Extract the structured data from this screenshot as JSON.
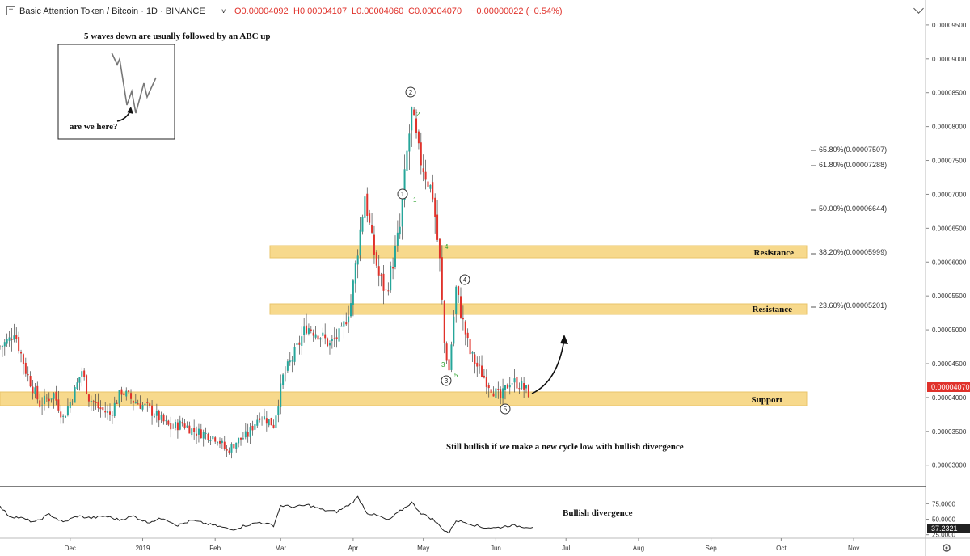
{
  "header": {
    "symbol": "Basic Attention Token / Bitcoin · 1D · BINANCE",
    "open": "O0.00004092",
    "high": "H0.00004107",
    "low": "L0.00004060",
    "close": "C0.00004070",
    "change": "−0.00000022 (−0.54%)"
  },
  "colors": {
    "up": "#26a69a",
    "down": "#e0322b",
    "zone": "#f7d98c",
    "price_tag": "#e0322b"
  },
  "chart_data": [
    {
      "type": "candlestick",
      "title": "Basic Attention Token / Bitcoin · 1D · BINANCE",
      "y_ticks": [
        "0.00009500",
        "0.00009000",
        "0.00008500",
        "0.00008000",
        "0.00007500",
        "0.00007000",
        "0.00006500",
        "0.00006000",
        "0.00005500",
        "0.00005000",
        "0.00004500",
        "0.00004000",
        "0.00003500",
        "0.00003000"
      ],
      "x_ticks": [
        "Dec",
        "2019",
        "Feb",
        "Mar",
        "Apr",
        "May",
        "Jun",
        "Jul",
        "Aug",
        "Sep",
        "Oct",
        "Nov"
      ],
      "ylim": [
        2.77e-05,
        9.63e-05
      ],
      "last_price": "0.00004070",
      "fib_levels": [
        {
          "label": "65.80%(0.00007507)",
          "value": 7.507e-05
        },
        {
          "label": "61.80%(0.00007288)",
          "value": 7.288e-05
        },
        {
          "label": "50.00%(0.00006644)",
          "value": 6.644e-05
        },
        {
          "label": "38.20%(0.00005999)",
          "value": 5.999e-05
        },
        {
          "label": "23.60%(0.00005201)",
          "value": 5.201e-05
        }
      ],
      "zones": [
        {
          "label": "Resistance",
          "low": 5.96e-05,
          "high": 6.13e-05
        },
        {
          "label": "Resistance",
          "low": 5.16e-05,
          "high": 5.31e-05
        },
        {
          "label": "Support",
          "low": 3.84e-05,
          "high": 4.04e-05
        }
      ],
      "wave_labels": [
        "1",
        "2",
        "3",
        "4",
        "5"
      ],
      "wave_counts": [
        "1",
        "2",
        "3",
        "4",
        "5"
      ],
      "annotations": [
        "5 waves down are usually followed by an ABC up",
        "are we here?",
        "Still bullish if we make a new cycle low with bullish divergence"
      ],
      "price_points": [
        [
          "2018-11-01",
          4.75e-05
        ],
        [
          "2018-11-05",
          4.85e-05
        ],
        [
          "2018-11-07",
          5e-05
        ],
        [
          "2018-11-12",
          4.4e-05
        ],
        [
          "2018-11-18",
          3.9e-05
        ],
        [
          "2018-11-24",
          4.05e-05
        ],
        [
          "2018-11-28",
          3.7e-05
        ],
        [
          "2018-12-03",
          4.1e-05
        ],
        [
          "2018-12-06",
          4.4e-05
        ],
        [
          "2018-12-09",
          4e-05
        ],
        [
          "2018-12-13",
          3.85e-05
        ],
        [
          "2018-12-18",
          3.75e-05
        ],
        [
          "2018-12-23",
          4.1e-05
        ],
        [
          "2018-12-28",
          3.95e-05
        ],
        [
          "2019-01-03",
          3.85e-05
        ],
        [
          "2019-01-08",
          3.7e-05
        ],
        [
          "2019-01-13",
          3.55e-05
        ],
        [
          "2019-01-18",
          3.62e-05
        ],
        [
          "2019-01-23",
          3.5e-05
        ],
        [
          "2019-01-28",
          3.46e-05
        ],
        [
          "2019-02-02",
          3.4e-05
        ],
        [
          "2019-02-06",
          3.2e-05
        ],
        [
          "2019-02-10",
          3.35e-05
        ],
        [
          "2019-02-15",
          3.45e-05
        ],
        [
          "2019-02-20",
          3.75e-05
        ],
        [
          "2019-02-26",
          3.6e-05
        ],
        [
          "2019-03-02",
          4.3e-05
        ],
        [
          "2019-03-07",
          4.65e-05
        ],
        [
          "2019-03-12",
          5.05e-05
        ],
        [
          "2019-03-17",
          4.95e-05
        ],
        [
          "2019-03-22",
          4.78e-05
        ],
        [
          "2019-03-27",
          4.95e-05
        ],
        [
          "2019-03-31",
          5.4e-05
        ],
        [
          "2019-04-03",
          6.2e-05
        ],
        [
          "2019-04-06",
          7e-05
        ],
        [
          "2019-04-09",
          6.3e-05
        ],
        [
          "2019-04-12",
          5.8e-05
        ],
        [
          "2019-04-15",
          5.55e-05
        ],
        [
          "2019-04-18",
          6e-05
        ],
        [
          "2019-04-21",
          6.5e-05
        ],
        [
          "2019-04-24",
          7.6e-05
        ],
        [
          "2019-04-26",
          8.2e-05
        ],
        [
          "2019-04-29",
          7.6e-05
        ],
        [
          "2019-05-02",
          7.3e-05
        ],
        [
          "2019-05-05",
          7e-05
        ],
        [
          "2019-05-08",
          6e-05
        ],
        [
          "2019-05-10",
          4.8e-05
        ],
        [
          "2019-05-12",
          4.4e-05
        ],
        [
          "2019-05-15",
          5.6e-05
        ],
        [
          "2019-05-18",
          5.1e-05
        ],
        [
          "2019-05-21",
          4.65e-05
        ],
        [
          "2019-05-25",
          4.4e-05
        ],
        [
          "2019-05-30",
          4.15e-05
        ],
        [
          "2019-06-03",
          3.98e-05
        ],
        [
          "2019-06-07",
          4.25e-05
        ],
        [
          "2019-06-11",
          4.2e-05
        ],
        [
          "2019-06-15",
          4.07e-05
        ]
      ]
    },
    {
      "type": "line",
      "y_ticks": [
        "75.0000",
        "50.0000",
        "25.0000"
      ],
      "ylim": [
        22,
        95
      ],
      "last_value": "37.2321",
      "annotation": "Bullish divergence",
      "points": [
        [
          "2018-11-01",
          70
        ],
        [
          "2018-11-05",
          55
        ],
        [
          "2018-11-10",
          52
        ],
        [
          "2018-11-16",
          45
        ],
        [
          "2018-11-22",
          58
        ],
        [
          "2018-11-28",
          45
        ],
        [
          "2018-12-04",
          55
        ],
        [
          "2018-12-10",
          52
        ],
        [
          "2018-12-16",
          55
        ],
        [
          "2018-12-22",
          49
        ],
        [
          "2018-12-28",
          55
        ],
        [
          "2019-01-03",
          45
        ],
        [
          "2019-01-10",
          52
        ],
        [
          "2019-01-16",
          40
        ],
        [
          "2019-01-22",
          48
        ],
        [
          "2019-01-28",
          43
        ],
        [
          "2019-02-03",
          38
        ],
        [
          "2019-02-08",
          33
        ],
        [
          "2019-02-14",
          40
        ],
        [
          "2019-02-20",
          45
        ],
        [
          "2019-02-26",
          40
        ],
        [
          "2019-03-01",
          72
        ],
        [
          "2019-03-07",
          70
        ],
        [
          "2019-03-13",
          73
        ],
        [
          "2019-03-19",
          65
        ],
        [
          "2019-03-25",
          62
        ],
        [
          "2019-03-31",
          75
        ],
        [
          "2019-04-03",
          86
        ],
        [
          "2019-04-07",
          60
        ],
        [
          "2019-04-12",
          55
        ],
        [
          "2019-04-16",
          48
        ],
        [
          "2019-04-20",
          60
        ],
        [
          "2019-04-26",
          77
        ],
        [
          "2019-04-30",
          60
        ],
        [
          "2019-05-05",
          50
        ],
        [
          "2019-05-10",
          32
        ],
        [
          "2019-05-12",
          28
        ],
        [
          "2019-05-15",
          48
        ],
        [
          "2019-05-20",
          44
        ],
        [
          "2019-05-26",
          37
        ],
        [
          "2019-06-01",
          36
        ],
        [
          "2019-06-07",
          40
        ],
        [
          "2019-06-13",
          38
        ],
        [
          "2019-06-17",
          37.2
        ]
      ]
    }
  ]
}
